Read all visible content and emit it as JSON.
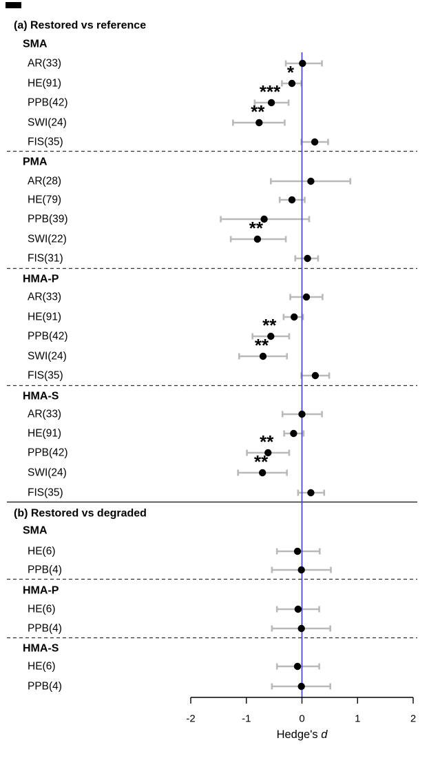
{
  "chart_data": {
    "type": "scatter",
    "subtype": "forest-plot",
    "title": "",
    "xlabel": "Hedge's d",
    "xlabel_plain": "Hedge's",
    "xlabel_italic": "d",
    "xlim": [
      -2,
      2
    ],
    "xticks": [
      -2,
      -1,
      0,
      1,
      2
    ],
    "zero_line_x": 0,
    "grid": false,
    "legend": null,
    "colors": {
      "point": "#000000",
      "ci_bar": "#b9b9b9",
      "zero_line": "#4444cc",
      "separator": "#2e2e2e",
      "axis": "#000000",
      "background": "#ffffff"
    },
    "panels": [
      {
        "id": "a",
        "title": "(a) Restored vs reference",
        "groups": [
          {
            "name": "SMA",
            "rows": [
              {
                "label": "AR(33)",
                "d": 0.01,
                "ci_low": -0.29,
                "ci_high": 0.36,
                "sig": ""
              },
              {
                "label": "HE(91)",
                "d": -0.18,
                "ci_low": -0.36,
                "ci_high": -0.01,
                "sig": "*"
              },
              {
                "label": "PPB(42)",
                "d": -0.55,
                "ci_low": -0.85,
                "ci_high": -0.24,
                "sig": "***"
              },
              {
                "label": "SWI(24)",
                "d": -0.77,
                "ci_low": -1.24,
                "ci_high": -0.31,
                "sig": "**"
              },
              {
                "label": "FIS(35)",
                "d": 0.23,
                "ci_low": -0.01,
                "ci_high": 0.47,
                "sig": ""
              }
            ]
          },
          {
            "name": "PMA",
            "rows": [
              {
                "label": "AR(28)",
                "d": 0.16,
                "ci_low": -0.56,
                "ci_high": 0.87,
                "sig": ""
              },
              {
                "label": "HE(79)",
                "d": -0.18,
                "ci_low": -0.4,
                "ci_high": 0.05,
                "sig": ""
              },
              {
                "label": "PPB(39)",
                "d": -0.68,
                "ci_low": -1.46,
                "ci_high": 0.13,
                "sig": ""
              },
              {
                "label": "SWI(22)",
                "d": -0.8,
                "ci_low": -1.28,
                "ci_high": -0.29,
                "sig": "**"
              },
              {
                "label": "FIS(31)",
                "d": 0.1,
                "ci_low": -0.12,
                "ci_high": 0.29,
                "sig": ""
              }
            ]
          },
          {
            "name": "HMA-P",
            "rows": [
              {
                "label": "AR(33)",
                "d": 0.08,
                "ci_low": -0.21,
                "ci_high": 0.37,
                "sig": ""
              },
              {
                "label": "HE(91)",
                "d": -0.14,
                "ci_low": -0.33,
                "ci_high": 0.02,
                "sig": ""
              },
              {
                "label": "PPB(42)",
                "d": -0.56,
                "ci_low": -0.89,
                "ci_high": -0.23,
                "sig": "**"
              },
              {
                "label": "SWI(24)",
                "d": -0.7,
                "ci_low": -1.13,
                "ci_high": -0.27,
                "sig": "**"
              },
              {
                "label": "FIS(35)",
                "d": 0.24,
                "ci_low": -0.01,
                "ci_high": 0.49,
                "sig": ""
              }
            ]
          },
          {
            "name": "HMA-S",
            "rows": [
              {
                "label": "AR(33)",
                "d": 0.0,
                "ci_low": -0.35,
                "ci_high": 0.36,
                "sig": ""
              },
              {
                "label": "HE(91)",
                "d": -0.15,
                "ci_low": -0.32,
                "ci_high": 0.03,
                "sig": ""
              },
              {
                "label": "PPB(42)",
                "d": -0.61,
                "ci_low": -0.99,
                "ci_high": -0.23,
                "sig": "**"
              },
              {
                "label": "SWI(24)",
                "d": -0.71,
                "ci_low": -1.15,
                "ci_high": -0.27,
                "sig": "**"
              },
              {
                "label": "FIS(35)",
                "d": 0.16,
                "ci_low": -0.07,
                "ci_high": 0.4,
                "sig": ""
              }
            ]
          }
        ]
      },
      {
        "id": "b",
        "title": "(b) Restored vs degraded",
        "groups": [
          {
            "name": "SMA",
            "rows": [
              {
                "label": "HE(6)",
                "d": -0.08,
                "ci_low": -0.45,
                "ci_high": 0.32,
                "sig": ""
              },
              {
                "label": "PPB(4)",
                "d": -0.01,
                "ci_low": -0.54,
                "ci_high": 0.52,
                "sig": ""
              }
            ]
          },
          {
            "name": "HMA-P",
            "rows": [
              {
                "label": "HE(6)",
                "d": -0.07,
                "ci_low": -0.45,
                "ci_high": 0.31,
                "sig": ""
              },
              {
                "label": "PPB(4)",
                "d": -0.01,
                "ci_low": -0.54,
                "ci_high": 0.51,
                "sig": ""
              }
            ]
          },
          {
            "name": "HMA-S",
            "rows": [
              {
                "label": "HE(6)",
                "d": -0.08,
                "ci_low": -0.45,
                "ci_high": 0.31,
                "sig": ""
              },
              {
                "label": "PPB(4)",
                "d": -0.01,
                "ci_low": -0.54,
                "ci_high": 0.51,
                "sig": ""
              }
            ]
          }
        ]
      }
    ]
  }
}
